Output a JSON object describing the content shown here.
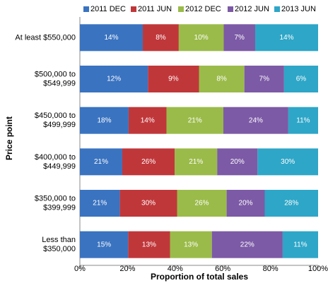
{
  "chart_data": {
    "type": "bar",
    "orientation": "horizontal",
    "stack": "percent",
    "xlabel": "Proportion of total sales",
    "ylabel": "Price point",
    "categories": [
      [
        "At least $550,000"
      ],
      [
        "$500,000 to",
        "$549,999"
      ],
      [
        "$450,000 to",
        "$499,999"
      ],
      [
        "$400,000 to",
        "$449,999"
      ],
      [
        "$350,000 to",
        "$399,999"
      ],
      [
        "Less than",
        "$350,000"
      ]
    ],
    "series": [
      {
        "name": "2011 DEC",
        "color": "#3a73c0",
        "values": [
          14,
          12,
          18,
          21,
          21,
          15
        ],
        "value_labels": [
          "14%",
          "12%",
          "18%",
          "21%",
          "21%",
          "15%"
        ]
      },
      {
        "name": "2011 JUN",
        "color": "#c0373a",
        "values": [
          8,
          9,
          14,
          26,
          30,
          13
        ],
        "value_labels": [
          "8%",
          "9%",
          "14%",
          "26%",
          "30%",
          "13%"
        ]
      },
      {
        "name": "2012 DEC",
        "color": "#9abb49",
        "values": [
          10,
          8,
          21,
          21,
          26,
          13
        ],
        "value_labels": [
          "10%",
          "8%",
          "21%",
          "21%",
          "26%",
          "13%"
        ]
      },
      {
        "name": "2012 JUN",
        "color": "#7c5aa6",
        "values": [
          7,
          7,
          24,
          20,
          20,
          22
        ],
        "value_labels": [
          "7%",
          "7%",
          "24%",
          "20%",
          "20%",
          "22%"
        ]
      },
      {
        "name": "2013 JUN",
        "color": "#2ea6c7",
        "values": [
          14,
          6,
          11,
          30,
          28,
          11
        ],
        "value_labels": [
          "14%",
          "6%",
          "11%",
          "30%",
          "28%",
          "11%"
        ]
      }
    ],
    "xlim": [
      0,
      100
    ],
    "xticks": [
      {
        "value": 0,
        "label": "0%"
      },
      {
        "value": 20,
        "label": "20%"
      },
      {
        "value": 40,
        "label": "40%"
      },
      {
        "value": 60,
        "label": "60%"
      },
      {
        "value": 80,
        "label": "80%"
      },
      {
        "value": 100,
        "label": "100%"
      }
    ],
    "legend": "top"
  }
}
